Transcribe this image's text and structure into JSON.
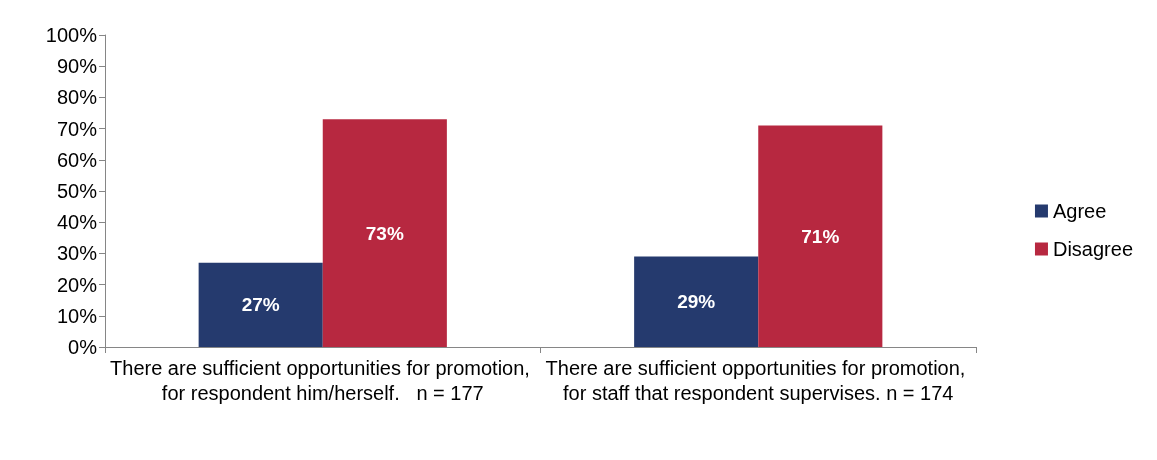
{
  "chart_data": {
    "type": "bar",
    "categories": [
      "There are sufficient opportunities for promotion, for respondent him/herself.   n = 177",
      "There are sufficient opportunities for promotion, for staff that respondent supervises. n = 174"
    ],
    "series": [
      {
        "name": "Agree",
        "color": "#253a6e",
        "values": [
          27,
          29
        ],
        "value_labels": [
          "27%",
          "29%"
        ]
      },
      {
        "name": "Disagree",
        "color": "#b72840",
        "values": [
          73,
          71
        ],
        "value_labels": [
          "73%",
          "71%"
        ]
      }
    ],
    "ylim": [
      0,
      100
    ],
    "yticks": [
      {
        "value": 0,
        "label": "0%"
      },
      {
        "value": 10,
        "label": "10%"
      },
      {
        "value": 20,
        "label": "20%"
      },
      {
        "value": 30,
        "label": "30%"
      },
      {
        "value": 40,
        "label": "40%"
      },
      {
        "value": 50,
        "label": "50%"
      },
      {
        "value": 60,
        "label": "60%"
      },
      {
        "value": 70,
        "label": "70%"
      },
      {
        "value": 80,
        "label": "80%"
      },
      {
        "value": 90,
        "label": "90%"
      },
      {
        "value": 100,
        "label": "100%"
      }
    ],
    "grid": false,
    "legend": "right"
  }
}
